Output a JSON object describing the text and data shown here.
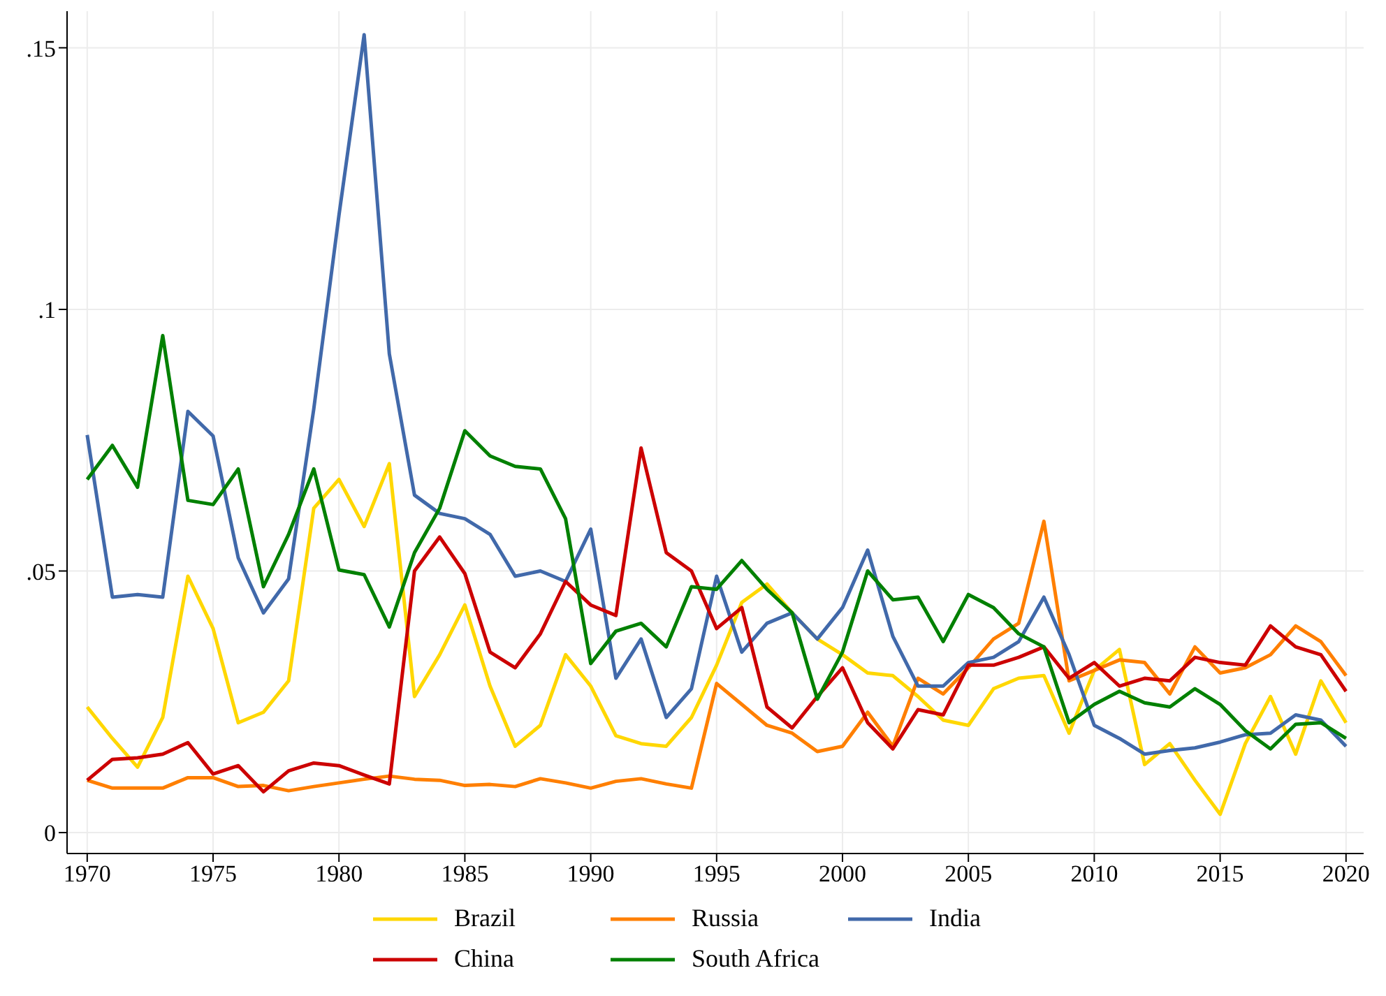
{
  "chart_data": {
    "type": "line",
    "x": [
      1970,
      1971,
      1972,
      1973,
      1974,
      1975,
      1976,
      1977,
      1978,
      1979,
      1980,
      1981,
      1982,
      1983,
      1984,
      1985,
      1986,
      1987,
      1988,
      1989,
      1990,
      1991,
      1992,
      1993,
      1994,
      1995,
      1996,
      1997,
      1998,
      1999,
      2000,
      2001,
      2002,
      2003,
      2004,
      2005,
      2006,
      2007,
      2008,
      2009,
      2010,
      2011,
      2012,
      2013,
      2014,
      2015,
      2016,
      2017,
      2018,
      2019,
      2020
    ],
    "series": [
      {
        "name": "Brazil",
        "color": "#ffd700",
        "values": [
          0.024,
          0.018,
          0.0125,
          0.022,
          0.049,
          0.039,
          0.021,
          0.023,
          0.029,
          0.062,
          0.0675,
          0.0585,
          0.0705,
          0.026,
          0.034,
          0.0435,
          0.028,
          0.0165,
          0.0205,
          0.034,
          0.028,
          0.0185,
          0.017,
          0.0165,
          0.022,
          0.032,
          0.044,
          0.0475,
          0.042,
          0.037,
          0.034,
          0.0305,
          0.03,
          0.026,
          0.0215,
          0.0205,
          0.0275,
          0.0295,
          0.03,
          0.019,
          0.031,
          0.035,
          0.013,
          0.017,
          0.01,
          0.0035,
          0.017,
          0.026,
          0.015,
          0.029,
          0.021
        ]
      },
      {
        "name": "Russia",
        "color": "#ff7f00",
        "values": [
          0.01,
          0.0085,
          0.0085,
          0.0085,
          0.0105,
          0.0105,
          0.0088,
          0.009,
          0.008,
          0.0088,
          0.0095,
          0.0102,
          0.0108,
          0.0102,
          0.01,
          0.009,
          0.0092,
          0.0088,
          0.0103,
          0.0095,
          0.0085,
          0.0098,
          0.0103,
          0.0093,
          0.0085,
          0.0285,
          0.0245,
          0.0205,
          0.019,
          0.0155,
          0.0165,
          0.023,
          0.0165,
          0.0295,
          0.0265,
          0.0315,
          0.037,
          0.04,
          0.0595,
          0.029,
          0.031,
          0.033,
          0.0325,
          0.0265,
          0.0355,
          0.0305,
          0.0315,
          0.034,
          0.0395,
          0.0365,
          0.03
        ]
      },
      {
        "name": "India",
        "color": "#4169aa",
        "values": [
          0.076,
          0.045,
          0.0455,
          0.045,
          0.0805,
          0.0758,
          0.0525,
          0.042,
          0.0485,
          0.081,
          0.118,
          0.1525,
          0.0915,
          0.0645,
          0.061,
          0.06,
          0.057,
          0.049,
          0.05,
          0.048,
          0.058,
          0.0295,
          0.037,
          0.022,
          0.0275,
          0.049,
          0.0345,
          0.04,
          0.042,
          0.037,
          0.043,
          0.054,
          0.0375,
          0.028,
          0.028,
          0.0325,
          0.0335,
          0.0365,
          0.045,
          0.034,
          0.0205,
          0.018,
          0.015,
          0.0157,
          0.0162,
          0.0173,
          0.0187,
          0.019,
          0.0225,
          0.0215,
          0.0165
        ]
      },
      {
        "name": "China",
        "color": "#cc0000",
        "values": [
          0.01,
          0.014,
          0.0143,
          0.015,
          0.0172,
          0.0112,
          0.0128,
          0.0078,
          0.0118,
          0.0133,
          0.0128,
          0.011,
          0.0093,
          0.05,
          0.0565,
          0.0495,
          0.0345,
          0.0315,
          0.038,
          0.048,
          0.0435,
          0.0415,
          0.0735,
          0.0535,
          0.05,
          0.039,
          0.043,
          0.024,
          0.02,
          0.026,
          0.0315,
          0.021,
          0.016,
          0.0235,
          0.0225,
          0.032,
          0.032,
          0.0335,
          0.0355,
          0.0295,
          0.0325,
          0.028,
          0.0295,
          0.029,
          0.0335,
          0.0325,
          0.032,
          0.0395,
          0.0355,
          0.034,
          0.027
        ]
      },
      {
        "name": "South Africa",
        "color": "#008000",
        "values": [
          0.0675,
          0.074,
          0.066,
          0.095,
          0.0635,
          0.0627,
          0.0695,
          0.047,
          0.057,
          0.0695,
          0.0502,
          0.0493,
          0.0393,
          0.0535,
          0.062,
          0.0768,
          0.072,
          0.07,
          0.0695,
          0.06,
          0.0323,
          0.0385,
          0.04,
          0.0355,
          0.047,
          0.0465,
          0.052,
          0.0465,
          0.042,
          0.0255,
          0.0345,
          0.05,
          0.0445,
          0.045,
          0.0365,
          0.0455,
          0.043,
          0.038,
          0.0355,
          0.021,
          0.0245,
          0.027,
          0.0248,
          0.024,
          0.0275,
          0.0245,
          0.0195,
          0.016,
          0.0207,
          0.021,
          0.018
        ]
      }
    ],
    "xlim": [
      1969.2,
      2020.7
    ],
    "xticks": [
      1970,
      1975,
      1980,
      1985,
      1990,
      1995,
      2000,
      2005,
      2010,
      2015,
      2020
    ],
    "ylim": [
      -0.004,
      0.157
    ],
    "yticks": [
      {
        "value": 0,
        "label": "0"
      },
      {
        "value": 0.05,
        "label": ".05"
      },
      {
        "value": 0.1,
        "label": ".1"
      },
      {
        "value": 0.15,
        "label": ".15"
      }
    ],
    "grid": true,
    "legend": "bottom",
    "marker": "none",
    "line_style": "solid"
  }
}
